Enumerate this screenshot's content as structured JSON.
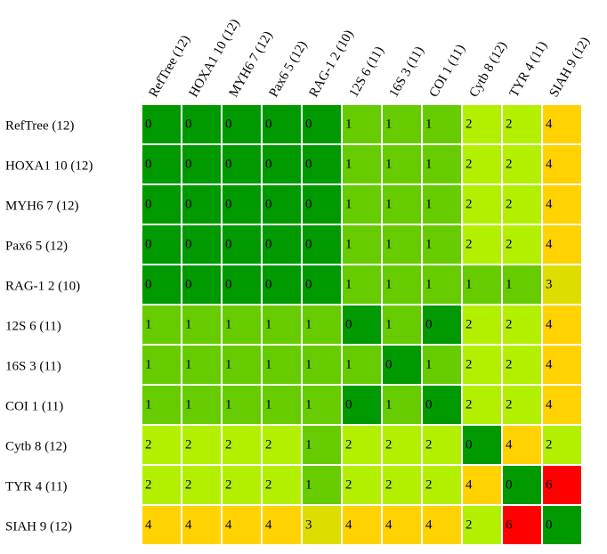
{
  "chart_data": {
    "type": "heatmap",
    "labels": [
      "RefTree (12)",
      "HOXA1 10 (12)",
      "MYH6 7 (12)",
      "Pax6 5 (12)",
      "RAG-1 2 (10)",
      "12S 6 (11)",
      "16S 3 (11)",
      "COI 1 (11)",
      "Cytb 8 (12)",
      "TYR 4 (11)",
      "SIAH 9 (12)"
    ],
    "values": [
      [
        0,
        0,
        0,
        0,
        0,
        1,
        1,
        1,
        2,
        2,
        4
      ],
      [
        0,
        0,
        0,
        0,
        0,
        1,
        1,
        1,
        2,
        2,
        4
      ],
      [
        0,
        0,
        0,
        0,
        0,
        1,
        1,
        1,
        2,
        2,
        4
      ],
      [
        0,
        0,
        0,
        0,
        0,
        1,
        1,
        1,
        2,
        2,
        4
      ],
      [
        0,
        0,
        0,
        0,
        0,
        1,
        1,
        1,
        1,
        1,
        3
      ],
      [
        1,
        1,
        1,
        1,
        1,
        0,
        1,
        0,
        2,
        2,
        4
      ],
      [
        1,
        1,
        1,
        1,
        1,
        1,
        0,
        1,
        2,
        2,
        4
      ],
      [
        1,
        1,
        1,
        1,
        1,
        0,
        1,
        0,
        2,
        2,
        4
      ],
      [
        2,
        2,
        2,
        2,
        1,
        2,
        2,
        2,
        0,
        4,
        2
      ],
      [
        2,
        2,
        2,
        2,
        1,
        2,
        2,
        2,
        4,
        0,
        6
      ],
      [
        4,
        4,
        4,
        4,
        3,
        4,
        4,
        4,
        2,
        6,
        0
      ]
    ],
    "colors": {
      "0": "#009900",
      "1": "#66cc00",
      "2": "#b3f000",
      "3": "#ddde00",
      "4": "#ffd200",
      "6": "#ff0000"
    },
    "grid_line_color": "#ffffff"
  }
}
